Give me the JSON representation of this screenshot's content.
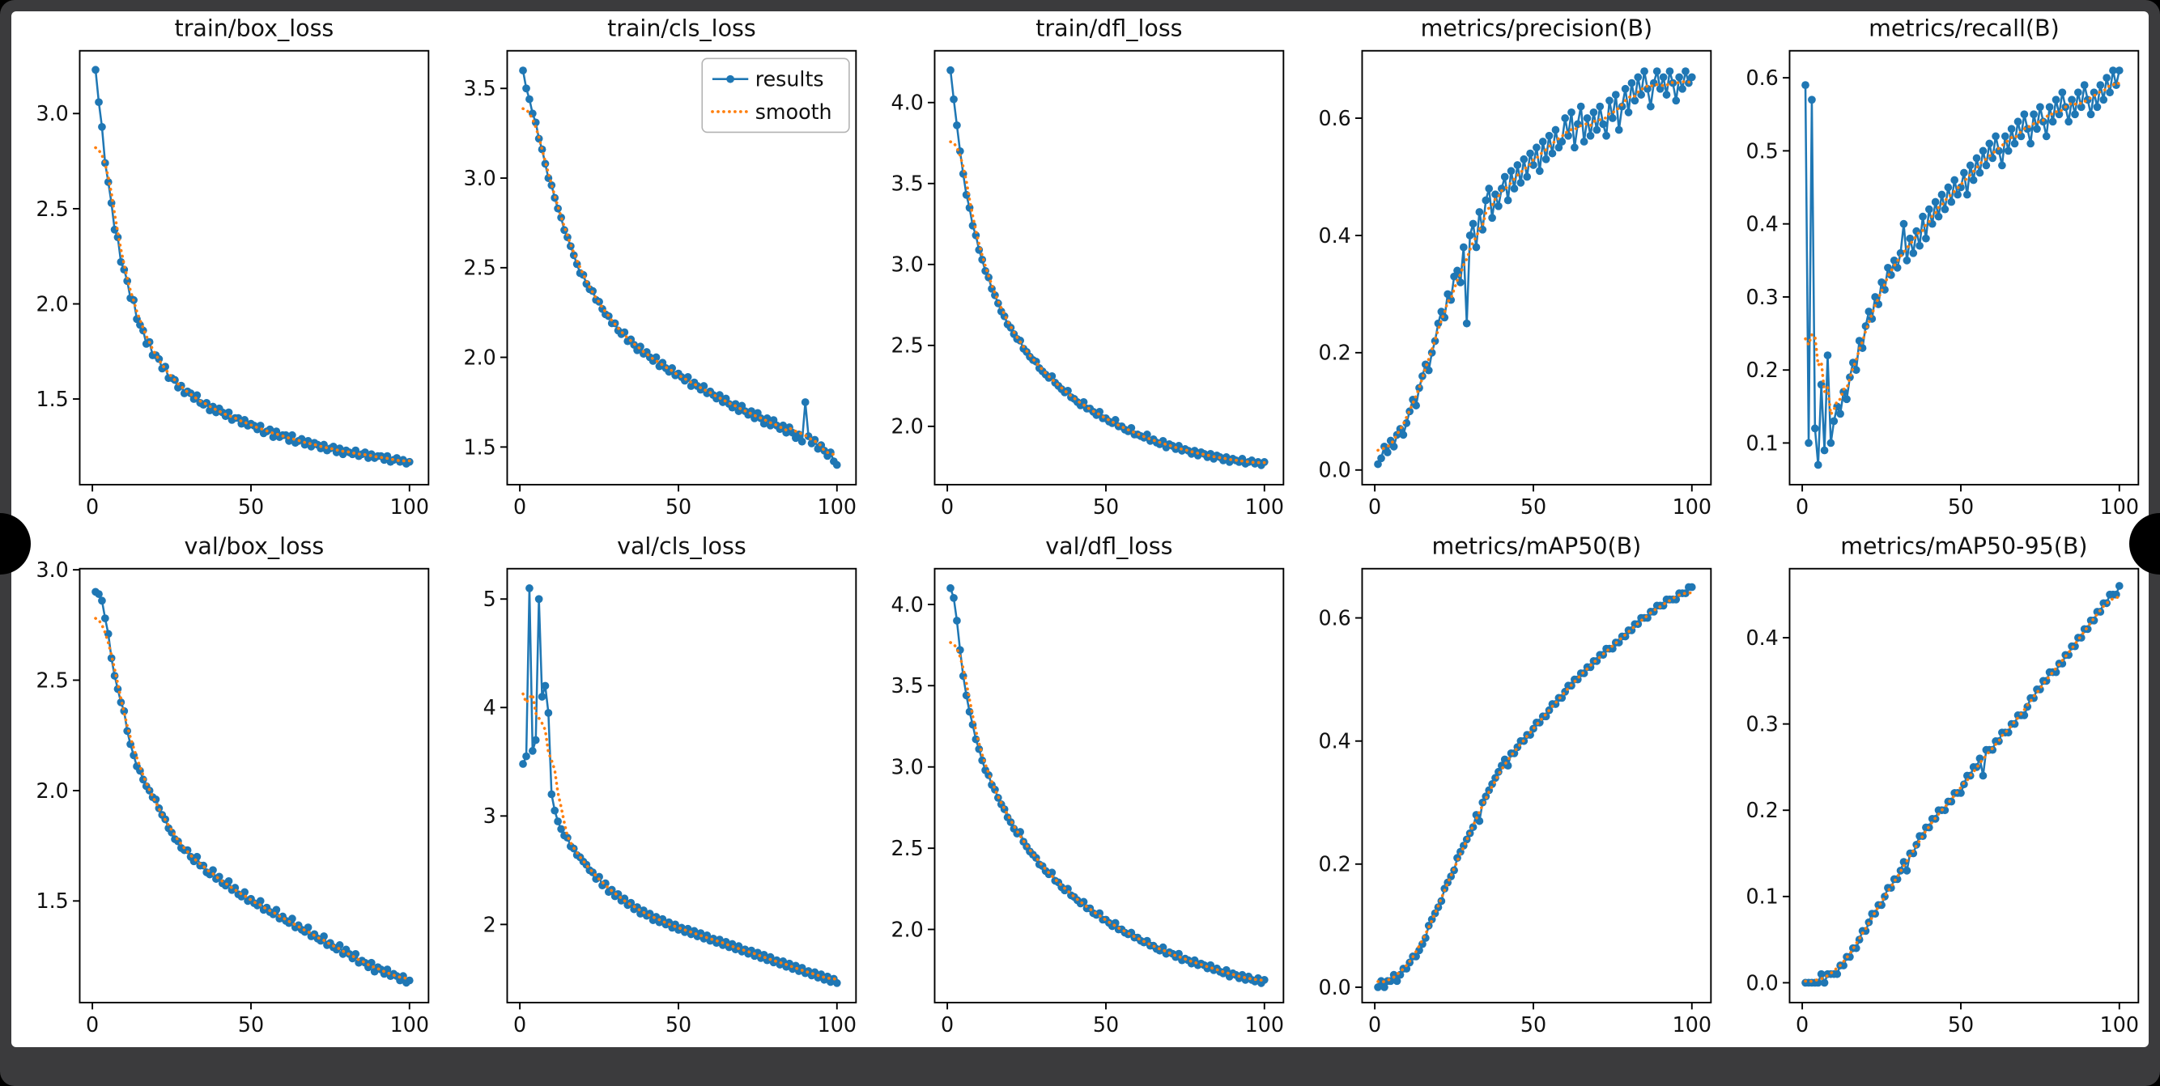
{
  "window": {
    "page_background": "#000000",
    "frame_color": "#3b3b3d",
    "figure_background": "#ffffff"
  },
  "style": {
    "results_color": "#1f77b4",
    "smooth_color": "#ff7f0e",
    "spine_color": "#000000"
  },
  "legend": {
    "results_label": "results",
    "smooth_label": "smooth"
  },
  "epochs": {
    "start": 1,
    "end": 100
  },
  "chart_data": [
    {
      "type": "line",
      "title": "train/box_loss",
      "show_legend": false,
      "xlim": [
        -4,
        106
      ],
      "xticks": [
        0,
        50,
        100
      ],
      "xtick_labels": [
        "0",
        "50",
        "100"
      ],
      "ylim": [
        1.05,
        3.33
      ],
      "yticks": [
        1.5,
        2.0,
        2.5,
        3.0
      ],
      "ytick_labels": [
        "1.5",
        "2.0",
        "2.5",
        "3.0"
      ],
      "values": [
        3.23,
        3.06,
        2.93,
        2.74,
        2.64,
        2.53,
        2.39,
        2.35,
        2.22,
        2.18,
        2.12,
        2.03,
        2.02,
        1.92,
        1.89,
        1.86,
        1.79,
        1.8,
        1.73,
        1.73,
        1.71,
        1.66,
        1.67,
        1.61,
        1.61,
        1.6,
        1.56,
        1.57,
        1.53,
        1.54,
        1.53,
        1.5,
        1.52,
        1.48,
        1.47,
        1.48,
        1.44,
        1.46,
        1.43,
        1.45,
        1.43,
        1.41,
        1.43,
        1.39,
        1.4,
        1.4,
        1.37,
        1.39,
        1.36,
        1.37,
        1.36,
        1.34,
        1.36,
        1.32,
        1.33,
        1.34,
        1.3,
        1.33,
        1.3,
        1.31,
        1.31,
        1.28,
        1.31,
        1.27,
        1.28,
        1.29,
        1.26,
        1.28,
        1.25,
        1.27,
        1.26,
        1.24,
        1.26,
        1.23,
        1.24,
        1.25,
        1.22,
        1.24,
        1.21,
        1.23,
        1.22,
        1.21,
        1.23,
        1.2,
        1.21,
        1.22,
        1.19,
        1.21,
        1.19,
        1.2,
        1.2,
        1.18,
        1.2,
        1.17,
        1.18,
        1.19,
        1.17,
        1.18,
        1.16,
        1.17
      ]
    },
    {
      "type": "line",
      "title": "train/cls_loss",
      "show_legend": true,
      "xlim": [
        -4,
        106
      ],
      "xticks": [
        0,
        50,
        100
      ],
      "xtick_labels": [
        "0",
        "50",
        "100"
      ],
      "ylim": [
        1.29,
        3.71
      ],
      "yticks": [
        1.5,
        2.0,
        2.5,
        3.0,
        3.5
      ],
      "ytick_labels": [
        "1.5",
        "2.0",
        "2.5",
        "3.0",
        "3.5"
      ],
      "values": [
        3.6,
        3.5,
        3.44,
        3.36,
        3.31,
        3.22,
        3.16,
        3.08,
        3.0,
        2.96,
        2.89,
        2.83,
        2.78,
        2.71,
        2.67,
        2.62,
        2.57,
        2.52,
        2.47,
        2.46,
        2.41,
        2.38,
        2.37,
        2.32,
        2.31,
        2.27,
        2.24,
        2.23,
        2.19,
        2.19,
        2.15,
        2.13,
        2.14,
        2.09,
        2.1,
        2.07,
        2.04,
        2.06,
        2.02,
        2.03,
        2.0,
        1.98,
        2.0,
        1.95,
        1.97,
        1.94,
        1.92,
        1.94,
        1.9,
        1.91,
        1.89,
        1.87,
        1.89,
        1.84,
        1.86,
        1.84,
        1.82,
        1.84,
        1.8,
        1.81,
        1.79,
        1.77,
        1.79,
        1.75,
        1.77,
        1.74,
        1.72,
        1.74,
        1.7,
        1.73,
        1.7,
        1.68,
        1.7,
        1.66,
        1.69,
        1.66,
        1.63,
        1.66,
        1.62,
        1.65,
        1.62,
        1.6,
        1.62,
        1.58,
        1.61,
        1.58,
        1.55,
        1.57,
        1.53,
        1.75,
        1.56,
        1.52,
        1.54,
        1.49,
        1.51,
        1.48,
        1.45,
        1.47,
        1.42,
        1.4
      ]
    },
    {
      "type": "line",
      "title": "train/dfl_loss",
      "show_legend": false,
      "xlim": [
        -4,
        106
      ],
      "xticks": [
        0,
        50,
        100
      ],
      "xtick_labels": [
        "0",
        "50",
        "100"
      ],
      "ylim": [
        1.64,
        4.32
      ],
      "yticks": [
        2.0,
        2.5,
        3.0,
        3.5,
        4.0
      ],
      "ytick_labels": [
        "2.0",
        "2.5",
        "3.0",
        "3.5",
        "4.0"
      ],
      "values": [
        4.2,
        4.02,
        3.86,
        3.7,
        3.56,
        3.43,
        3.35,
        3.24,
        3.18,
        3.09,
        3.03,
        2.96,
        2.92,
        2.85,
        2.81,
        2.76,
        2.71,
        2.68,
        2.63,
        2.61,
        2.57,
        2.54,
        2.53,
        2.48,
        2.46,
        2.43,
        2.41,
        2.4,
        2.36,
        2.34,
        2.32,
        2.3,
        2.31,
        2.27,
        2.25,
        2.23,
        2.21,
        2.22,
        2.18,
        2.17,
        2.15,
        2.13,
        2.15,
        2.11,
        2.11,
        2.09,
        2.07,
        2.09,
        2.05,
        2.05,
        2.03,
        2.02,
        2.04,
        2.0,
        2.0,
        1.98,
        1.97,
        1.99,
        1.95,
        1.95,
        1.94,
        1.93,
        1.95,
        1.91,
        1.92,
        1.9,
        1.89,
        1.91,
        1.87,
        1.89,
        1.88,
        1.86,
        1.88,
        1.85,
        1.86,
        1.85,
        1.83,
        1.85,
        1.82,
        1.84,
        1.83,
        1.81,
        1.83,
        1.8,
        1.82,
        1.81,
        1.79,
        1.81,
        1.78,
        1.8,
        1.79,
        1.78,
        1.8,
        1.77,
        1.78,
        1.79,
        1.77,
        1.78,
        1.76,
        1.78
      ]
    },
    {
      "type": "line",
      "title": "metrics/precision(B)",
      "show_legend": false,
      "xlim": [
        -4,
        106
      ],
      "xticks": [
        0,
        50,
        100
      ],
      "xtick_labels": [
        "0",
        "50",
        "100"
      ],
      "ylim": [
        -0.025,
        0.715
      ],
      "yticks": [
        0.0,
        0.2,
        0.4,
        0.6
      ],
      "ytick_labels": [
        "0.0",
        "0.2",
        "0.4",
        "0.6"
      ],
      "values": [
        0.01,
        0.02,
        0.04,
        0.03,
        0.05,
        0.04,
        0.06,
        0.07,
        0.06,
        0.08,
        0.1,
        0.12,
        0.11,
        0.14,
        0.16,
        0.18,
        0.17,
        0.2,
        0.22,
        0.25,
        0.27,
        0.26,
        0.3,
        0.29,
        0.33,
        0.34,
        0.32,
        0.38,
        0.25,
        0.4,
        0.42,
        0.38,
        0.44,
        0.41,
        0.46,
        0.48,
        0.43,
        0.47,
        0.45,
        0.48,
        0.5,
        0.46,
        0.51,
        0.48,
        0.52,
        0.49,
        0.53,
        0.5,
        0.54,
        0.52,
        0.55,
        0.51,
        0.56,
        0.53,
        0.57,
        0.54,
        0.58,
        0.55,
        0.56,
        0.6,
        0.57,
        0.61,
        0.55,
        0.59,
        0.62,
        0.56,
        0.6,
        0.57,
        0.61,
        0.58,
        0.62,
        0.59,
        0.57,
        0.63,
        0.6,
        0.64,
        0.58,
        0.62,
        0.65,
        0.61,
        0.66,
        0.63,
        0.67,
        0.64,
        0.68,
        0.65,
        0.62,
        0.66,
        0.68,
        0.65,
        0.67,
        0.64,
        0.68,
        0.66,
        0.63,
        0.67,
        0.65,
        0.68,
        0.66,
        0.67
      ]
    },
    {
      "type": "line",
      "title": "metrics/recall(B)",
      "show_legend": false,
      "xlim": [
        -4,
        106
      ],
      "xticks": [
        0,
        50,
        100
      ],
      "xtick_labels": [
        "0",
        "50",
        "100"
      ],
      "ylim": [
        0.043,
        0.637
      ],
      "yticks": [
        0.1,
        0.2,
        0.3,
        0.4,
        0.5,
        0.6
      ],
      "ytick_labels": [
        "0.1",
        "0.2",
        "0.3",
        "0.4",
        "0.5",
        "0.6"
      ],
      "values": [
        0.59,
        0.1,
        0.57,
        0.12,
        0.07,
        0.18,
        0.09,
        0.22,
        0.1,
        0.13,
        0.15,
        0.14,
        0.17,
        0.16,
        0.19,
        0.21,
        0.2,
        0.24,
        0.23,
        0.26,
        0.28,
        0.27,
        0.3,
        0.29,
        0.32,
        0.31,
        0.34,
        0.33,
        0.35,
        0.34,
        0.36,
        0.4,
        0.35,
        0.38,
        0.36,
        0.39,
        0.37,
        0.41,
        0.38,
        0.42,
        0.4,
        0.43,
        0.41,
        0.44,
        0.42,
        0.45,
        0.43,
        0.46,
        0.44,
        0.45,
        0.47,
        0.44,
        0.48,
        0.46,
        0.49,
        0.47,
        0.5,
        0.48,
        0.51,
        0.49,
        0.52,
        0.5,
        0.48,
        0.52,
        0.5,
        0.53,
        0.51,
        0.54,
        0.52,
        0.55,
        0.53,
        0.51,
        0.55,
        0.53,
        0.56,
        0.54,
        0.52,
        0.56,
        0.54,
        0.57,
        0.55,
        0.58,
        0.56,
        0.54,
        0.57,
        0.55,
        0.58,
        0.56,
        0.59,
        0.57,
        0.55,
        0.58,
        0.56,
        0.59,
        0.57,
        0.6,
        0.58,
        0.61,
        0.59,
        0.61
      ]
    },
    {
      "type": "line",
      "title": "val/box_loss",
      "show_legend": false,
      "xlim": [
        -4,
        106
      ],
      "xticks": [
        0,
        50,
        100
      ],
      "xtick_labels": [
        "0",
        "50",
        "100"
      ],
      "ylim": [
        1.04,
        3.005
      ],
      "yticks": [
        1.5,
        2.0,
        2.5,
        3.0
      ],
      "ytick_labels": [
        "1.5",
        "2.0",
        "2.5",
        "3.0"
      ],
      "values": [
        2.9,
        2.89,
        2.86,
        2.78,
        2.71,
        2.6,
        2.52,
        2.46,
        2.4,
        2.36,
        2.27,
        2.21,
        2.16,
        2.11,
        2.09,
        2.05,
        2.02,
        2.0,
        1.97,
        1.96,
        1.92,
        1.89,
        1.87,
        1.83,
        1.81,
        1.78,
        1.77,
        1.74,
        1.73,
        1.73,
        1.7,
        1.68,
        1.7,
        1.66,
        1.66,
        1.63,
        1.62,
        1.64,
        1.6,
        1.61,
        1.58,
        1.57,
        1.59,
        1.55,
        1.56,
        1.53,
        1.52,
        1.54,
        1.5,
        1.51,
        1.49,
        1.48,
        1.5,
        1.46,
        1.47,
        1.45,
        1.44,
        1.46,
        1.42,
        1.43,
        1.41,
        1.4,
        1.42,
        1.38,
        1.39,
        1.37,
        1.36,
        1.38,
        1.34,
        1.35,
        1.33,
        1.32,
        1.34,
        1.3,
        1.31,
        1.29,
        1.28,
        1.3,
        1.26,
        1.28,
        1.26,
        1.24,
        1.26,
        1.22,
        1.23,
        1.22,
        1.2,
        1.22,
        1.18,
        1.2,
        1.19,
        1.17,
        1.19,
        1.16,
        1.17,
        1.16,
        1.14,
        1.16,
        1.13,
        1.14
      ]
    },
    {
      "type": "line",
      "title": "val/cls_loss",
      "show_legend": false,
      "xlim": [
        -4,
        106
      ],
      "xticks": [
        0,
        50,
        100
      ],
      "xtick_labels": [
        "0",
        "50",
        "100"
      ],
      "ylim": [
        1.28,
        5.28
      ],
      "yticks": [
        2,
        3,
        4,
        5
      ],
      "ytick_labels": [
        "2",
        "3",
        "4",
        "5"
      ],
      "values": [
        3.48,
        3.55,
        5.1,
        3.6,
        3.7,
        5.0,
        4.1,
        4.2,
        3.95,
        3.2,
        3.05,
        2.95,
        2.88,
        2.82,
        2.8,
        2.72,
        2.7,
        2.64,
        2.62,
        2.58,
        2.55,
        2.5,
        2.48,
        2.42,
        2.44,
        2.36,
        2.38,
        2.3,
        2.32,
        2.26,
        2.28,
        2.22,
        2.24,
        2.18,
        2.2,
        2.14,
        2.16,
        2.1,
        2.13,
        2.08,
        2.1,
        2.04,
        2.07,
        2.02,
        2.05,
        2.0,
        2.02,
        1.97,
        2.0,
        1.95,
        1.97,
        1.93,
        1.96,
        1.91,
        1.94,
        1.89,
        1.92,
        1.87,
        1.9,
        1.85,
        1.87,
        1.83,
        1.86,
        1.81,
        1.84,
        1.79,
        1.82,
        1.77,
        1.8,
        1.75,
        1.77,
        1.73,
        1.76,
        1.71,
        1.74,
        1.69,
        1.72,
        1.67,
        1.7,
        1.65,
        1.67,
        1.63,
        1.66,
        1.61,
        1.64,
        1.59,
        1.62,
        1.57,
        1.6,
        1.55,
        1.57,
        1.53,
        1.56,
        1.51,
        1.54,
        1.49,
        1.52,
        1.47,
        1.5,
        1.46
      ]
    },
    {
      "type": "line",
      "title": "val/dfl_loss",
      "show_legend": false,
      "xlim": [
        -4,
        106
      ],
      "xticks": [
        0,
        50,
        100
      ],
      "xtick_labels": [
        "0",
        "50",
        "100"
      ],
      "ylim": [
        1.55,
        4.22
      ],
      "yticks": [
        2.0,
        2.5,
        3.0,
        3.5,
        4.0
      ],
      "ytick_labels": [
        "2.0",
        "2.5",
        "3.0",
        "3.5",
        "4.0"
      ],
      "values": [
        4.1,
        4.04,
        3.9,
        3.72,
        3.56,
        3.44,
        3.34,
        3.26,
        3.17,
        3.11,
        3.04,
        2.98,
        2.95,
        2.89,
        2.86,
        2.81,
        2.77,
        2.74,
        2.69,
        2.66,
        2.62,
        2.59,
        2.6,
        2.54,
        2.51,
        2.48,
        2.46,
        2.44,
        2.4,
        2.39,
        2.36,
        2.34,
        2.35,
        2.3,
        2.29,
        2.26,
        2.24,
        2.25,
        2.21,
        2.2,
        2.18,
        2.16,
        2.17,
        2.13,
        2.13,
        2.1,
        2.09,
        2.1,
        2.06,
        2.06,
        2.04,
        2.02,
        2.04,
        2.0,
        2.0,
        1.98,
        1.97,
        1.98,
        1.95,
        1.95,
        1.93,
        1.92,
        1.93,
        1.9,
        1.9,
        1.88,
        1.87,
        1.89,
        1.85,
        1.86,
        1.85,
        1.83,
        1.85,
        1.81,
        1.82,
        1.81,
        1.79,
        1.81,
        1.78,
        1.79,
        1.78,
        1.76,
        1.78,
        1.75,
        1.76,
        1.74,
        1.73,
        1.75,
        1.71,
        1.73,
        1.72,
        1.7,
        1.72,
        1.69,
        1.71,
        1.69,
        1.68,
        1.7,
        1.67,
        1.69
      ]
    },
    {
      "type": "line",
      "title": "metrics/mAP50(B)",
      "show_legend": false,
      "xlim": [
        -4,
        106
      ],
      "xticks": [
        0,
        50,
        100
      ],
      "xtick_labels": [
        "0",
        "50",
        "100"
      ],
      "ylim": [
        -0.025,
        0.68
      ],
      "yticks": [
        0.0,
        0.2,
        0.4,
        0.6
      ],
      "ytick_labels": [
        "0.0",
        "0.2",
        "0.4",
        "0.6"
      ],
      "values": [
        0.0,
        0.01,
        0.0,
        0.01,
        0.01,
        0.02,
        0.01,
        0.02,
        0.03,
        0.03,
        0.04,
        0.05,
        0.05,
        0.06,
        0.07,
        0.08,
        0.1,
        0.11,
        0.12,
        0.13,
        0.14,
        0.16,
        0.17,
        0.18,
        0.19,
        0.21,
        0.22,
        0.23,
        0.24,
        0.25,
        0.26,
        0.28,
        0.27,
        0.3,
        0.31,
        0.32,
        0.33,
        0.34,
        0.35,
        0.36,
        0.37,
        0.36,
        0.38,
        0.38,
        0.39,
        0.4,
        0.4,
        0.41,
        0.41,
        0.42,
        0.43,
        0.43,
        0.44,
        0.44,
        0.45,
        0.46,
        0.46,
        0.47,
        0.47,
        0.48,
        0.49,
        0.49,
        0.5,
        0.5,
        0.51,
        0.51,
        0.52,
        0.52,
        0.53,
        0.53,
        0.54,
        0.54,
        0.55,
        0.55,
        0.55,
        0.56,
        0.56,
        0.57,
        0.57,
        0.58,
        0.58,
        0.59,
        0.59,
        0.6,
        0.6,
        0.6,
        0.61,
        0.61,
        0.62,
        0.62,
        0.62,
        0.63,
        0.63,
        0.63,
        0.63,
        0.64,
        0.64,
        0.64,
        0.65,
        0.65
      ]
    },
    {
      "type": "line",
      "title": "metrics/mAP50-95(B)",
      "show_legend": false,
      "xlim": [
        -4,
        106
      ],
      "xticks": [
        0,
        50,
        100
      ],
      "xtick_labels": [
        "0",
        "50",
        "100"
      ],
      "ylim": [
        -0.023,
        0.48
      ],
      "yticks": [
        0.0,
        0.1,
        0.2,
        0.3,
        0.4
      ],
      "ytick_labels": [
        "0.0",
        "0.1",
        "0.2",
        "0.3",
        "0.4"
      ],
      "values": [
        0.0,
        0.0,
        0.0,
        0.0,
        0.0,
        0.01,
        0.0,
        0.01,
        0.01,
        0.01,
        0.01,
        0.02,
        0.02,
        0.03,
        0.03,
        0.04,
        0.04,
        0.05,
        0.06,
        0.06,
        0.07,
        0.08,
        0.08,
        0.09,
        0.09,
        0.1,
        0.11,
        0.11,
        0.12,
        0.12,
        0.13,
        0.14,
        0.13,
        0.15,
        0.15,
        0.16,
        0.17,
        0.17,
        0.18,
        0.18,
        0.19,
        0.19,
        0.2,
        0.2,
        0.2,
        0.21,
        0.21,
        0.22,
        0.22,
        0.22,
        0.23,
        0.24,
        0.24,
        0.25,
        0.25,
        0.26,
        0.24,
        0.27,
        0.27,
        0.27,
        0.28,
        0.28,
        0.29,
        0.29,
        0.29,
        0.3,
        0.3,
        0.31,
        0.31,
        0.31,
        0.32,
        0.33,
        0.33,
        0.34,
        0.34,
        0.35,
        0.35,
        0.36,
        0.36,
        0.36,
        0.37,
        0.37,
        0.38,
        0.38,
        0.39,
        0.39,
        0.4,
        0.4,
        0.41,
        0.41,
        0.42,
        0.42,
        0.43,
        0.43,
        0.44,
        0.44,
        0.45,
        0.45,
        0.45,
        0.46
      ]
    }
  ]
}
